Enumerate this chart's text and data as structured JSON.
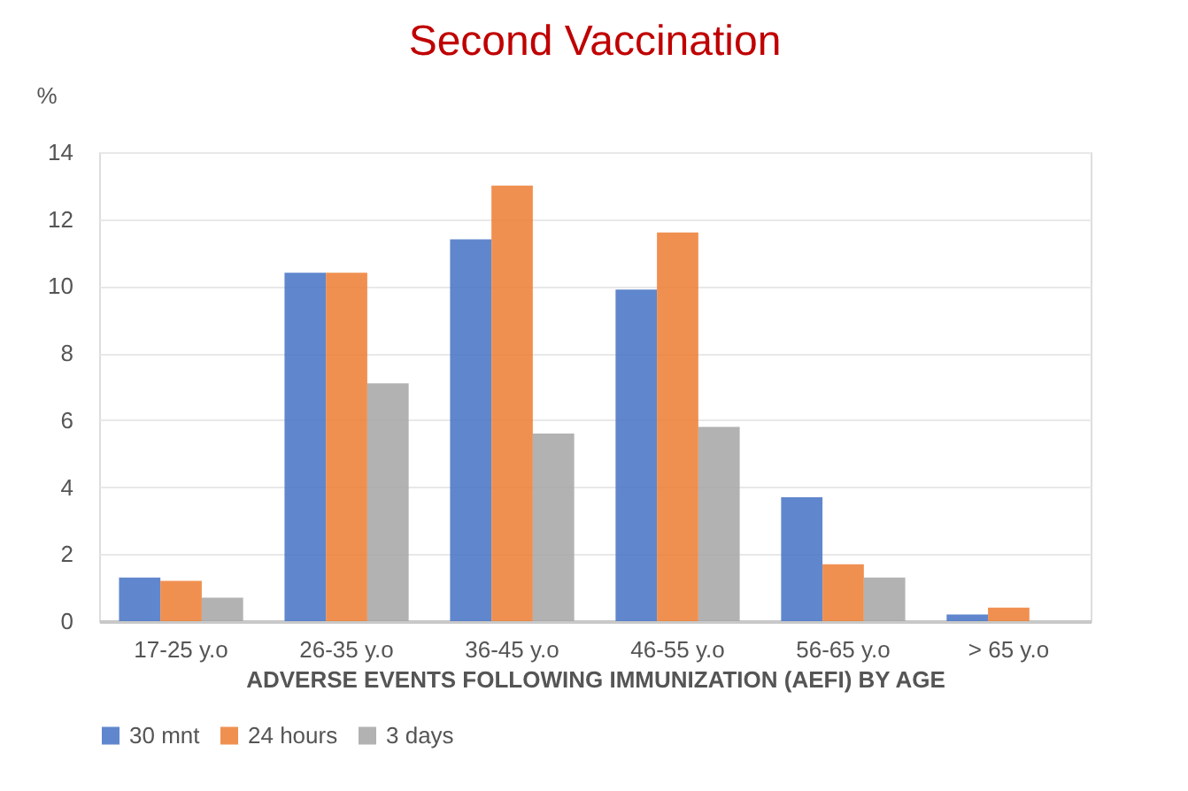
{
  "chart_data": {
    "type": "bar",
    "title": "Second Vaccination",
    "ylabel": "%",
    "xlabel": "ADVERSE EVENTS FOLLOWING IMMUNIZATION (AEFI) BY AGE",
    "categories": [
      "17-25 y.o",
      "26-35 y.o",
      "36-45 y.o",
      "46-55 y.o",
      "56-65 y.o",
      "> 65 y.o"
    ],
    "series": [
      {
        "name": "30 mnt",
        "color": "#4472c4",
        "values": [
          1.3,
          10.4,
          11.4,
          9.9,
          3.7,
          0.2
        ]
      },
      {
        "name": "24 hours",
        "color": "#ed7d31",
        "values": [
          1.2,
          10.4,
          13,
          11.6,
          1.7,
          0.4
        ]
      },
      {
        "name": "3 days",
        "color": "#a5a5a5",
        "values": [
          0.7,
          7.1,
          5.6,
          5.8,
          1.3,
          0
        ]
      }
    ],
    "ylim": [
      0,
      14
    ],
    "yticks": [
      0,
      2,
      4,
      6,
      8,
      10,
      12,
      14
    ],
    "grid": "y",
    "legend": "bottom"
  }
}
